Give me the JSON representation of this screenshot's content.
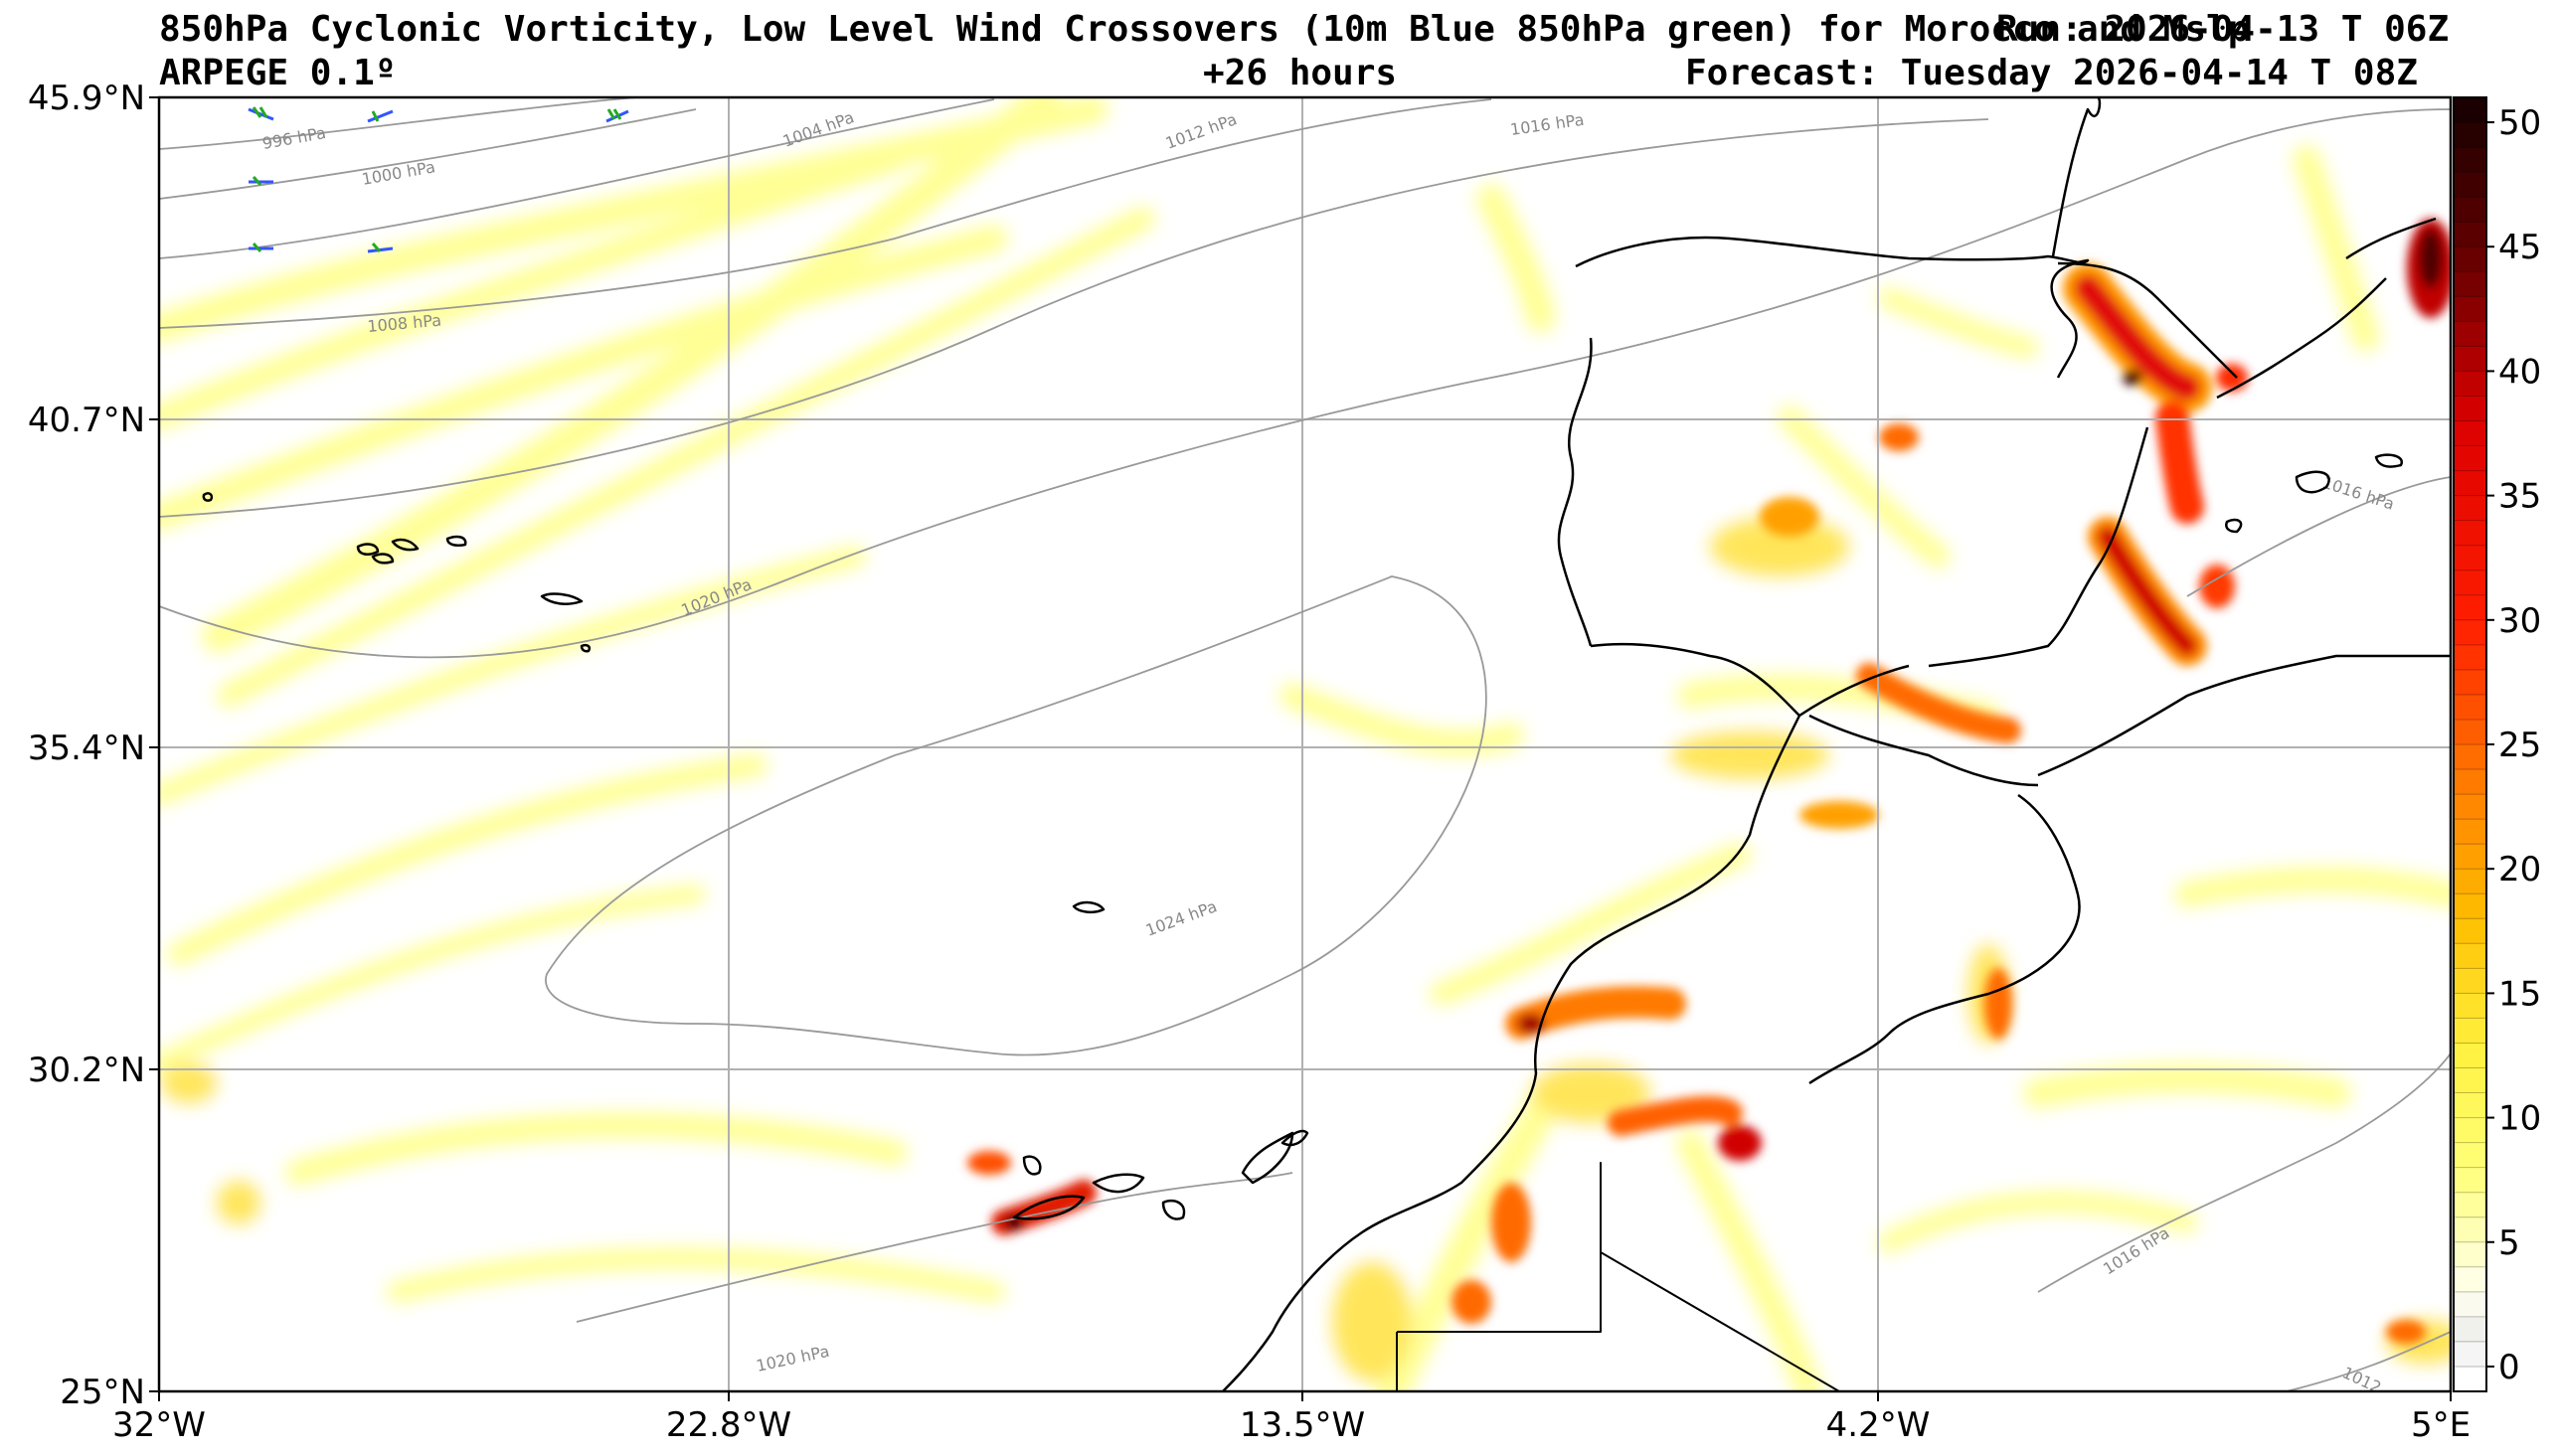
{
  "header": {
    "title_line1": "850hPa Cyclonic Vorticity, Low Level Wind Crossovers (10m Blue 850hPa green) for Morocco and Mslp",
    "run_label": "Run: 2026-04-13 T 06Z",
    "model_label": "ARPEGE 0.1º",
    "lead_time": "+26 hours",
    "forecast_label": "Forecast: Tuesday 2026-04-14 T 08Z"
  },
  "axes": {
    "lat_ticks": [
      "45.9°N",
      "40.7°N",
      "35.4°N",
      "30.2°N",
      "25°N"
    ],
    "lon_ticks": [
      "32°W",
      "22.8°W",
      "13.5°W",
      "4.2°W",
      "5°E"
    ]
  },
  "colorbar": {
    "ticks": [
      "50",
      "45",
      "40",
      "35",
      "30",
      "25",
      "20",
      "15",
      "10",
      "5",
      "0"
    ],
    "min": -1,
    "max": 51
  },
  "isobars": [
    {
      "label": "996 hPa"
    },
    {
      "label": "1000 hPa"
    },
    {
      "label": "1004 hPa"
    },
    {
      "label": "1008 hPa"
    },
    {
      "label": "1012 hPa"
    },
    {
      "label": "1016 hPa"
    },
    {
      "label": "1020 hPa"
    },
    {
      "label": "1024 hPa"
    },
    {
      "label": "1016 hPa"
    },
    {
      "label": "1016 hPa"
    },
    {
      "label": "1020 hPa"
    },
    {
      "label": "1012"
    }
  ],
  "colors": {
    "background": "#ffffff",
    "grid": "#b0b0b0",
    "isobar": "#999999",
    "coast": "#000000",
    "vort_light": "#ffff99",
    "vort_mid": "#ffd700",
    "vort_high": "#ff2a00",
    "vort_max": "#3b0000",
    "wind_10m": "#3355ff",
    "wind_850": "#22aa22"
  }
}
